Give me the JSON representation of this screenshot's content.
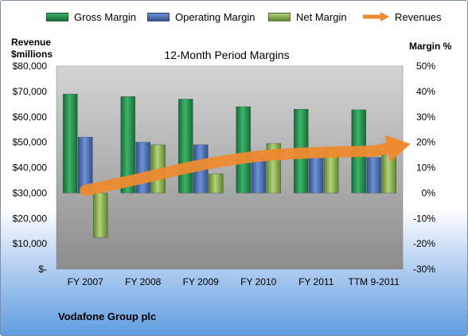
{
  "legend": {
    "gross": "Gross Margin",
    "operating": "Operating Margin",
    "net": "Net Margin",
    "revenues": "Revenues"
  },
  "left_axis_title_line1": "Revenue",
  "left_axis_title_line2": "$millions",
  "right_axis_title": "Margin %",
  "company": "Vodafone Group plc",
  "colors": {
    "gross": "#1f8a4a",
    "operating": "#4a6fb5",
    "net": "#8cb34d",
    "revenues": "#ee8a2f",
    "plot_top": "#d4d4d4",
    "plot_bottom": "#8c8c8c"
  },
  "chart_data": {
    "type": "bar",
    "title": "12-Month Period Margins",
    "categories": [
      "FY 2007",
      "FY 2008",
      "FY 2009",
      "FY 2010",
      "FY 2011",
      "TTM 9-2011"
    ],
    "series": [
      {
        "name": "Gross Margin",
        "axis": "right",
        "values": [
          39.0,
          38.0,
          37.0,
          34.0,
          33.0,
          32.8
        ]
      },
      {
        "name": "Operating Margin",
        "axis": "right",
        "values": [
          22.0,
          20.0,
          19.0,
          15.0,
          14.5,
          14.0
        ]
      },
      {
        "name": "Net Margin",
        "axis": "right",
        "values": [
          -17.5,
          19.0,
          7.5,
          19.5,
          17.5,
          15.0
        ]
      },
      {
        "name": "Revenues",
        "axis": "left",
        "type": "line",
        "values": [
          31000,
          35900,
          41000,
          44500,
          45900,
          46500
        ]
      }
    ],
    "left_axis": {
      "label": "Revenue $millions",
      "ylim": [
        0,
        80000
      ],
      "ticks": [
        "$-",
        "$10,000",
        "$20,000",
        "$30,000",
        "$40,000",
        "$50,000",
        "$60,000",
        "$70,000",
        "$80,000"
      ]
    },
    "right_axis": {
      "label": "Margin %",
      "ylim": [
        -30,
        50
      ],
      "ticks": [
        "-30%",
        "-20%",
        "-10%",
        "0%",
        "10%",
        "20%",
        "30%",
        "40%",
        "50%"
      ]
    },
    "grid": false,
    "legend_position": "top"
  }
}
